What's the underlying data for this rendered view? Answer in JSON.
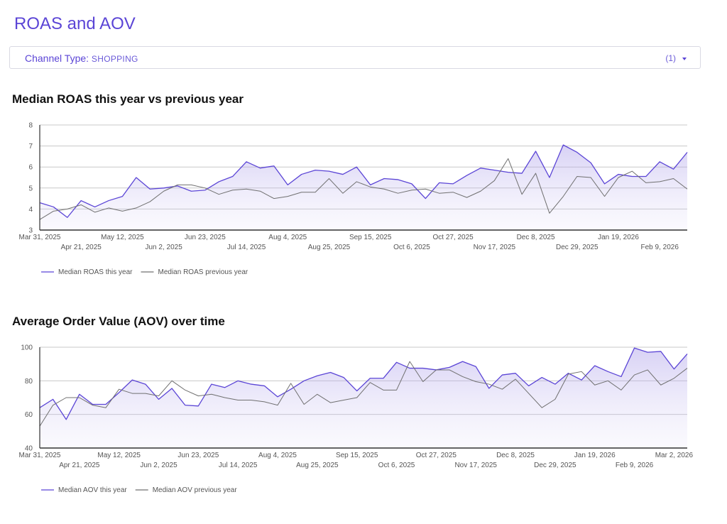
{
  "page": {
    "title": "ROAS and AOV"
  },
  "filter": {
    "label": "Channel Type: ",
    "value": "SHOPPING",
    "count": "(1)"
  },
  "colors": {
    "this_year": "#5b45d6",
    "previous_year": "#707070",
    "grid": "#c8c8c8",
    "axis": "#333333"
  },
  "chart_data": [
    {
      "type": "area",
      "title": "Median ROAS this year vs previous year",
      "xlabel": "",
      "ylabel": "",
      "ylim": [
        3,
        8
      ],
      "yticks": [
        3,
        4,
        5,
        6,
        7,
        8
      ],
      "grid": true,
      "legend": "bottom-left",
      "x_start": "Mar 31, 2025",
      "x_step_days": 7,
      "xticks_upper": [
        "Mar 31, 2025",
        "May 12, 2025",
        "Jun 23, 2025",
        "Aug 4, 2025",
        "Sep 15, 2025",
        "Oct 27, 2025",
        "Dec 8, 2025",
        "Jan 19, 2026"
      ],
      "xticks_lower": [
        "Apr 21, 2025",
        "Jun 2, 2025",
        "Jul 14, 2025",
        "Aug 25, 2025",
        "Oct 6, 2025",
        "Nov 17, 2025",
        "Dec 29, 2025",
        "Feb 9, 2026"
      ],
      "xtick_upper_index": [
        0,
        6,
        12,
        18,
        24,
        30,
        36,
        42
      ],
      "xtick_lower_index": [
        3,
        9,
        15,
        21,
        27,
        33,
        39,
        45
      ],
      "series": [
        {
          "name": "Median ROAS this year",
          "values": [
            4.3,
            4.1,
            3.6,
            4.4,
            4.1,
            4.4,
            4.6,
            5.5,
            4.95,
            5.0,
            5.1,
            4.85,
            4.9,
            5.3,
            5.55,
            6.25,
            5.95,
            6.05,
            5.15,
            5.65,
            5.85,
            5.8,
            5.65,
            6.0,
            5.15,
            5.45,
            5.4,
            5.2,
            4.5,
            5.25,
            5.2,
            5.6,
            5.95,
            5.85,
            5.75,
            5.7,
            6.75,
            5.5,
            7.05,
            6.7,
            6.2,
            5.2,
            5.65,
            5.55,
            5.55,
            6.25,
            5.9,
            6.7
          ]
        },
        {
          "name": "Median ROAS previous year",
          "values": [
            3.5,
            3.9,
            4.0,
            4.2,
            3.85,
            4.05,
            3.9,
            4.05,
            4.35,
            4.85,
            5.15,
            5.15,
            5.0,
            4.7,
            4.9,
            4.95,
            4.85,
            4.5,
            4.6,
            4.8,
            4.8,
            5.45,
            4.75,
            5.3,
            5.05,
            4.95,
            4.75,
            4.9,
            4.95,
            4.75,
            4.8,
            4.55,
            4.85,
            5.35,
            6.4,
            4.7,
            5.7,
            3.8,
            4.6,
            5.55,
            5.5,
            4.6,
            5.5,
            5.8,
            5.25,
            5.3,
            5.45,
            4.95
          ]
        }
      ]
    },
    {
      "type": "area",
      "title": "Average Order Value (AOV) over time",
      "xlabel": "",
      "ylabel": "",
      "ylim": [
        40,
        100
      ],
      "yticks": [
        40,
        60,
        80,
        100
      ],
      "grid": true,
      "legend": "bottom-left",
      "x_start": "Mar 31, 2025",
      "x_step_days": 7,
      "xticks_upper": [
        "Mar 31, 2025",
        "May 12, 2025",
        "Jun 23, 2025",
        "Aug 4, 2025",
        "Sep 15, 2025",
        "Oct 27, 2025",
        "Dec 8, 2025",
        "Jan 19, 2026",
        "Mar 2, 2026"
      ],
      "xticks_lower": [
        "Apr 21, 2025",
        "Jun 2, 2025",
        "Jul 14, 2025",
        "Aug 25, 2025",
        "Oct 6, 2025",
        "Nov 17, 2025",
        "Dec 29, 2025",
        "Feb 9, 2026"
      ],
      "xtick_upper_index": [
        0,
        6,
        12,
        18,
        24,
        30,
        36,
        42,
        48
      ],
      "xtick_lower_index": [
        3,
        9,
        15,
        21,
        27,
        33,
        39,
        45
      ],
      "series": [
        {
          "name": "Median AOV this year",
          "values": [
            64,
            69,
            57,
            72,
            66,
            66,
            73,
            80.5,
            78,
            69,
            75.5,
            65.5,
            65,
            78,
            76,
            80,
            78,
            77,
            70.5,
            75,
            80,
            83,
            85,
            82,
            74,
            81.5,
            81.5,
            91,
            87.5,
            87.5,
            86.5,
            88,
            91.5,
            88.5,
            75.5,
            83.5,
            84.5,
            77,
            82,
            78,
            84.5,
            80.5,
            89,
            85.5,
            82.5,
            99.5,
            97,
            97.5,
            87,
            96
          ]
        },
        {
          "name": "Median AOV previous year",
          "values": [
            53,
            65.5,
            70,
            70,
            65.5,
            64,
            75,
            72.5,
            72.5,
            71,
            80,
            74.5,
            71,
            72,
            70,
            68.5,
            68.5,
            67.5,
            65.5,
            78.5,
            66,
            72,
            67,
            68.5,
            70,
            79,
            74.5,
            74.5,
            91.5,
            79.5,
            86.5,
            86.5,
            82.5,
            79.5,
            78,
            75,
            81,
            72.5,
            64,
            69,
            84,
            85.5,
            77.5,
            80,
            74.5,
            83.5,
            86.5,
            77.5,
            81.5,
            87.5
          ]
        }
      ]
    }
  ]
}
